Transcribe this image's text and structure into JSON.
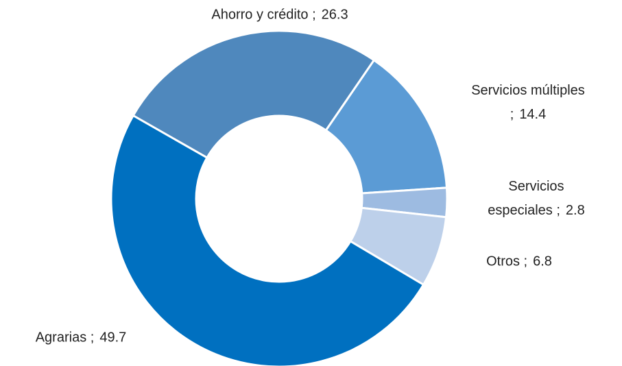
{
  "chart_data": {
    "type": "donut",
    "categories": [
      "Ahorro y crédito",
      "Servicios múltiples",
      "Servicios especiales",
      "Otros",
      "Agrarias"
    ],
    "values": [
      26.3,
      14.4,
      2.8,
      6.8,
      49.7
    ],
    "colors": [
      "#4f88bd",
      "#5b9bd5",
      "#9dbbe1",
      "#bdd0ea",
      "#0070c0"
    ],
    "label_separator": ";"
  }
}
